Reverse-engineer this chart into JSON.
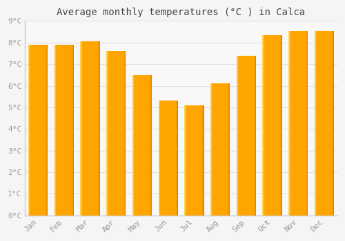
{
  "title": "Average monthly temperatures (°C ) in Calca",
  "months": [
    "Jan",
    "Feb",
    "Mar",
    "Apr",
    "May",
    "Jun",
    "Jul",
    "Aug",
    "Sep",
    "Oct",
    "Nov",
    "Dec"
  ],
  "values": [
    7.9,
    7.9,
    8.05,
    7.6,
    6.5,
    5.3,
    5.1,
    6.1,
    7.4,
    8.35,
    8.55,
    8.55
  ],
  "ylim": [
    0,
    9
  ],
  "yticks": [
    0,
    1,
    2,
    3,
    4,
    5,
    6,
    7,
    8,
    9
  ],
  "bar_color_main": "#FFA500",
  "bar_color_light": "#FFD060",
  "bar_color_dark": "#E08800",
  "bar_left_highlight": "#FFE080",
  "background_color": "#F5F5F5",
  "plot_bg_color": "#F8F8F8",
  "grid_color": "#E0E0E0",
  "title_fontsize": 10,
  "tick_fontsize": 8,
  "tick_color": "#999999",
  "title_color": "#444444",
  "bar_width": 0.75,
  "spine_color": "#CCCCCC"
}
